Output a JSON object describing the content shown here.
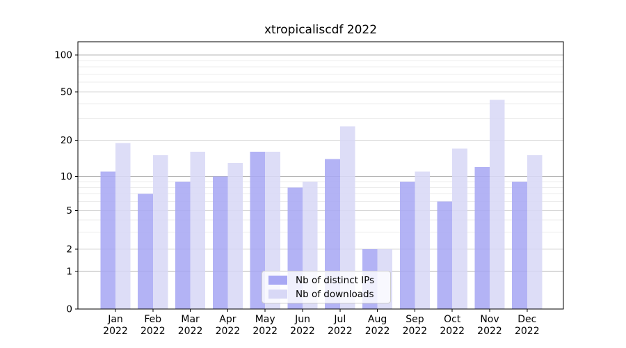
{
  "chart_data": {
    "type": "bar",
    "title": "xtropicaliscdf 2022",
    "categories": [
      "Jan 2022",
      "Feb 2022",
      "Mar 2022",
      "Apr 2022",
      "May 2022",
      "Jun 2022",
      "Jul 2022",
      "Aug 2022",
      "Sep 2022",
      "Oct 2022",
      "Nov 2022",
      "Dec 2022"
    ],
    "series": [
      {
        "name": "Nb of distinct IPs",
        "color": "#a8a8f4",
        "values": [
          11,
          7,
          9,
          10,
          16,
          8,
          14,
          2,
          9,
          6,
          12,
          9
        ]
      },
      {
        "name": "Nb of downloads",
        "color": "#d8d8f6",
        "values": [
          19,
          15,
          16,
          13,
          16,
          9,
          26,
          2,
          11,
          17,
          43,
          15
        ]
      }
    ],
    "xlabel": "",
    "ylabel": "",
    "yticks": [
      0,
      1,
      2,
      5,
      10,
      20,
      50,
      100
    ],
    "ylim": [
      0,
      130
    ],
    "yscale": "symlog",
    "grid": "horizontal-only",
    "legend_position": "bottom-center",
    "colors": {
      "axis": "#000000",
      "grid_major": "#b4b4b4",
      "grid_labeled": "#d7d7d7",
      "grid_minor": "#ececec",
      "text": "#000000"
    }
  }
}
